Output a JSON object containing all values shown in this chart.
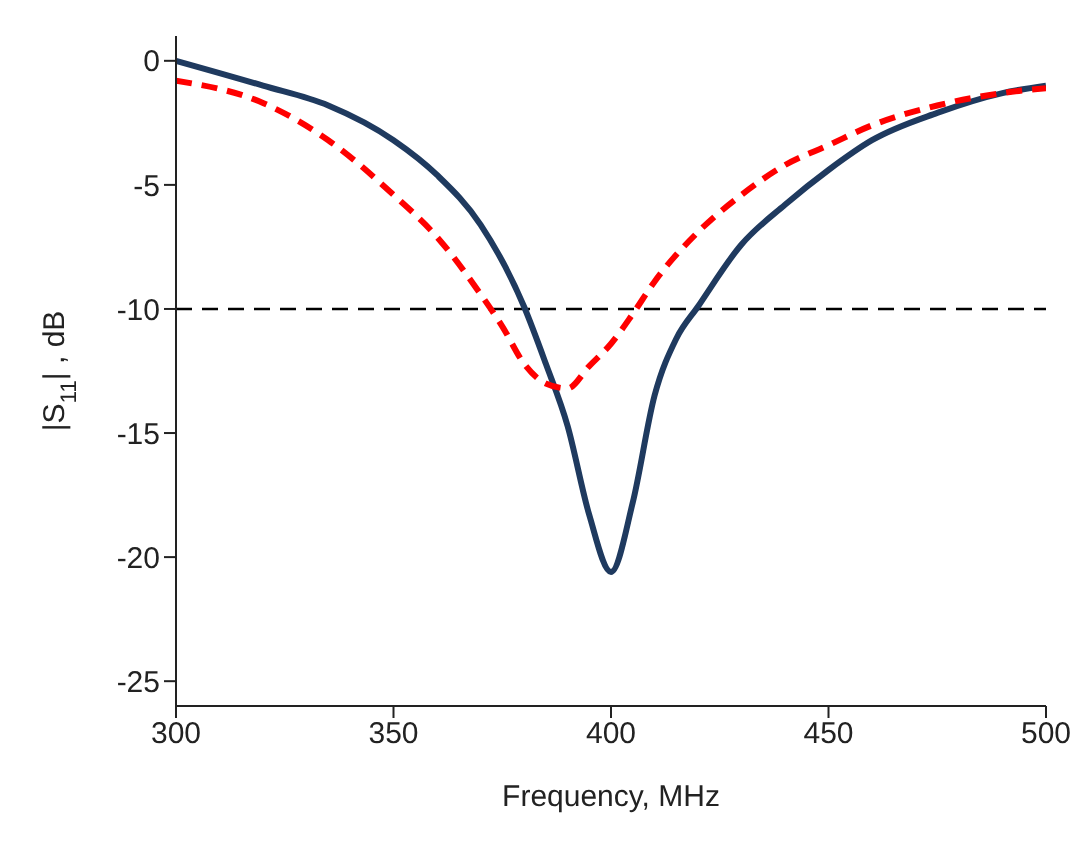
{
  "chart_data": {
    "type": "line",
    "xlabel": "Frequency, MHz",
    "ylabel": "|S$_{11}$| , dB",
    "xlim": [
      300,
      500
    ],
    "xticks": [
      300,
      350,
      400,
      450,
      500
    ],
    "ylim": [
      -26,
      1
    ],
    "yticks": [
      -25,
      -20,
      -15,
      -10,
      -5,
      0
    ],
    "grid": false,
    "legend": false,
    "marker": "none",
    "ref_lines": [
      {
        "axis": "y",
        "value": -10,
        "color": "#000000",
        "line_style": "dashed"
      }
    ],
    "series": [
      {
        "color": "#1f3a5f",
        "line_style": "solid",
        "x": [
          300,
          320,
          335,
          350,
          360,
          370,
          380,
          385,
          390,
          395,
          400,
          405,
          410,
          415,
          420,
          430,
          440,
          450,
          460,
          475,
          490,
          500
        ],
        "values": [
          0,
          -1.0,
          -1.8,
          -3.2,
          -4.6,
          -6.6,
          -9.9,
          -12.2,
          -14.7,
          -18.3,
          -20.6,
          -17.8,
          -13.5,
          -11.2,
          -9.9,
          -7.4,
          -5.8,
          -4.4,
          -3.2,
          -2.1,
          -1.3,
          -1.0
        ]
      },
      {
        "color": "#ff0000",
        "line_style": "dashed",
        "x": [
          300,
          320,
          335,
          350,
          360,
          370,
          375,
          380,
          385,
          390,
          395,
          400,
          405,
          410,
          420,
          430,
          440,
          450,
          460,
          475,
          490,
          500
        ],
        "values": [
          -0.8,
          -1.7,
          -3.2,
          -5.4,
          -7.1,
          -9.4,
          -10.7,
          -12.2,
          -13.0,
          -13.2,
          -12.3,
          -11.4,
          -10.2,
          -8.9,
          -6.9,
          -5.4,
          -4.2,
          -3.4,
          -2.6,
          -1.8,
          -1.3,
          -1.1
        ]
      }
    ]
  }
}
